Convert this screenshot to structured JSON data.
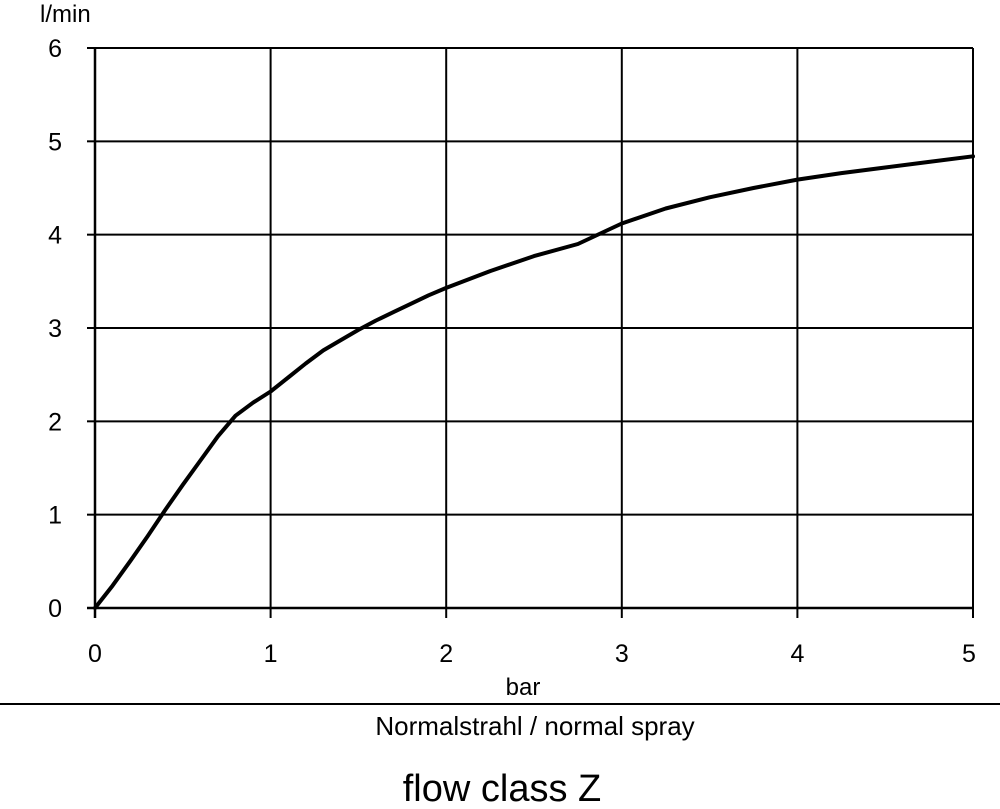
{
  "chart_data": {
    "type": "line",
    "title": "",
    "xlabel": "bar",
    "ylabel": "l/min",
    "xlim": [
      0,
      5
    ],
    "ylim": [
      0,
      6
    ],
    "x_ticks": [
      0,
      1,
      2,
      3,
      4,
      5
    ],
    "y_ticks": [
      0,
      1,
      2,
      3,
      4,
      5,
      6
    ],
    "grid": true,
    "series": [
      {
        "x": [
          0,
          0.1,
          0.2,
          0.3,
          0.4,
          0.5,
          0.6,
          0.7,
          0.8,
          0.9,
          1.0,
          1.1,
          1.2,
          1.3,
          1.4,
          1.5,
          1.6,
          1.7,
          1.8,
          1.9,
          2.0,
          2.25,
          2.5,
          2.75,
          3.0,
          3.25,
          3.5,
          3.75,
          4.0,
          4.25,
          4.5,
          4.75,
          5.0
        ],
        "y": [
          0,
          0.24,
          0.5,
          0.77,
          1.05,
          1.32,
          1.58,
          1.84,
          2.06,
          2.2,
          2.32,
          2.47,
          2.62,
          2.76,
          2.87,
          2.98,
          3.08,
          3.17,
          3.26,
          3.35,
          3.43,
          3.61,
          3.77,
          3.9,
          4.12,
          4.28,
          4.4,
          4.5,
          4.59,
          4.66,
          4.72,
          4.78,
          4.84
        ]
      }
    ]
  },
  "caption": "Normalstrahl / normal spray",
  "flow_class": "flow class Z"
}
